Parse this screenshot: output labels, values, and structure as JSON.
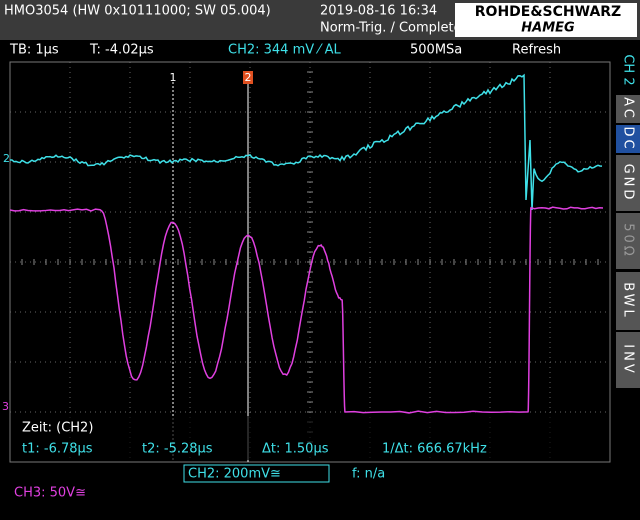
{
  "header": {
    "model": "HMO3054 (HW 0x10111000; SW 05.004)",
    "datetime": "2019-08-16 16:34",
    "trigger_state": "Norm-Trig. / Complete",
    "brand": "ROHDE&SCHWARZ",
    "sub_brand": "HAMEG"
  },
  "status": {
    "timebase": "TB: 1µs",
    "trigger_time": "T: -4.02µs",
    "trigger": "CH2: 344 mV ⁄ AL",
    "sample_rate": "500MSa",
    "mode": "Refresh"
  },
  "side_menu": {
    "channel": "CH 2",
    "items": [
      "AC",
      "DC",
      "GND",
      "50Ω",
      "BWL",
      "INV"
    ]
  },
  "markers": {
    "cursor1": "1",
    "cursor2": "2",
    "ch2": "2",
    "ch3": "3"
  },
  "cursor_panel": {
    "title": "Zeit: (CH2)",
    "t1": "t1: -6.78µs",
    "t2": "t2: -5.28µs",
    "dt": "Δt: 1.50µs",
    "inv_dt": "1/Δt: 666.67kHz"
  },
  "footer": {
    "ch2": "CH2: 200mV≅",
    "freq": "f: n/a",
    "ch3": "CH3: 50V≅"
  }
}
